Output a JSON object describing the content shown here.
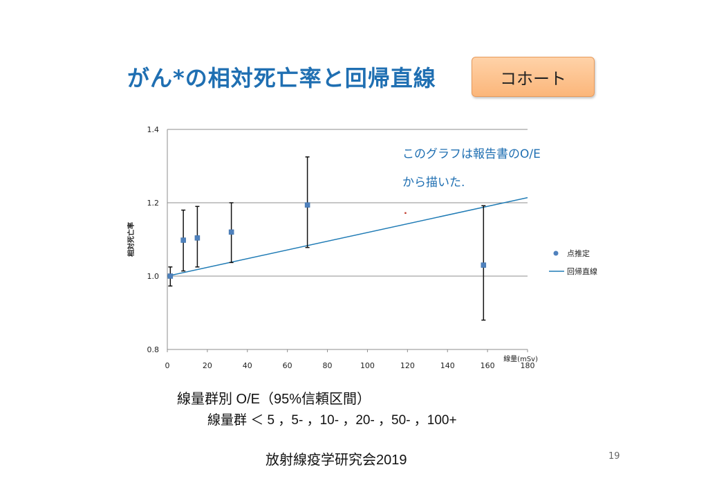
{
  "slide": {
    "title": "がん*の相対死亡率と回帰直線",
    "badge": "コホート",
    "subtitle_line1": "線量群別 O/E（95%信頼区間）",
    "subtitle_line2": "線量群  ＜ 5 ，5- ，10- ，20- ，50- ，100+",
    "footer": "放射線疫学研究会2019",
    "page_number": "19"
  },
  "chart_data": {
    "type": "scatter",
    "title": "",
    "xlabel": "線量(mSv)",
    "ylabel": "相対死亡率",
    "xlim": [
      0,
      180
    ],
    "ylim": [
      0.8,
      1.4
    ],
    "x_ticks": [
      0,
      20,
      40,
      60,
      80,
      100,
      120,
      140,
      160,
      180
    ],
    "y_ticks": [
      "0.8",
      "1.0",
      "1.2",
      "1.4"
    ],
    "grid": "horizontal",
    "legend_position": "right",
    "annotation_line1": "このグラフは報告書のO/E",
    "annotation_line2": "から描いた.",
    "series": [
      {
        "name": "点推定",
        "color": "#4f81bd",
        "points": [
          {
            "x": 1.5,
            "y": 1.0,
            "lo": 0.973,
            "hi": 1.025
          },
          {
            "x": 8,
            "y": 1.098,
            "lo": 1.014,
            "hi": 1.18
          },
          {
            "x": 15,
            "y": 1.104,
            "lo": 1.025,
            "hi": 1.19
          },
          {
            "x": 32,
            "y": 1.12,
            "lo": 1.037,
            "hi": 1.2
          },
          {
            "x": 70,
            "y": 1.194,
            "lo": 1.078,
            "hi": 1.325
          },
          {
            "x": 158,
            "y": 1.03,
            "lo": 0.88,
            "hi": 1.192
          }
        ]
      },
      {
        "name": "回帰直線",
        "color": "#1f7bb5",
        "line": {
          "x": [
            0,
            180
          ],
          "y": [
            1.0,
            1.214
          ]
        }
      }
    ],
    "stray_point": {
      "x": 119,
      "y": 1.172,
      "color": "#c0392b"
    }
  }
}
